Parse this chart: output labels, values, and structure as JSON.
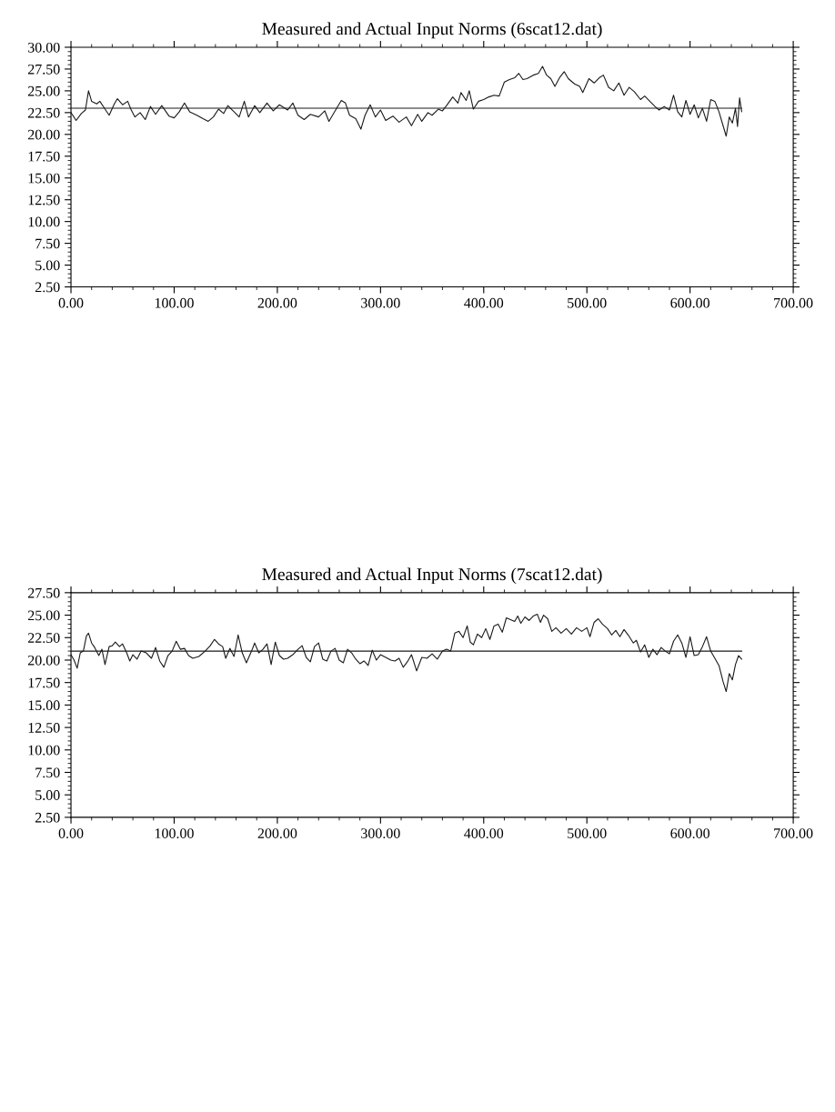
{
  "chart_data": [
    {
      "type": "line",
      "title": "Measured and Actual Input Norms (6scat12.dat)",
      "xlim": [
        0,
        700
      ],
      "ylim": [
        2.5,
        30
      ],
      "xticks": [
        {
          "value": 0,
          "label": "0.00"
        },
        {
          "value": 100,
          "label": "100.00"
        },
        {
          "value": 200,
          "label": "200.00"
        },
        {
          "value": 300,
          "label": "300.00"
        },
        {
          "value": 400,
          "label": "400.00"
        },
        {
          "value": 500,
          "label": "500.00"
        },
        {
          "value": 600,
          "label": "600.00"
        },
        {
          "value": 700,
          "label": "700.00"
        }
      ],
      "yticks": [
        {
          "value": 2.5,
          "label": "2.50"
        },
        {
          "value": 5,
          "label": "5.00"
        },
        {
          "value": 7.5,
          "label": "7.50"
        },
        {
          "value": 10,
          "label": "10.00"
        },
        {
          "value": 12.5,
          "label": "12.50"
        },
        {
          "value": 15,
          "label": "15.00"
        },
        {
          "value": 17.5,
          "label": "17.50"
        },
        {
          "value": 20,
          "label": "20.00"
        },
        {
          "value": 22.5,
          "label": "22.50"
        },
        {
          "value": 25,
          "label": "25.00"
        },
        {
          "value": 27.5,
          "label": "27.50"
        },
        {
          "value": 30,
          "label": "30.00"
        }
      ],
      "series": [
        {
          "color": "#1a1a1a",
          "x": [
            0,
            5,
            10,
            14,
            17,
            20,
            25,
            28,
            33,
            37,
            42,
            45,
            50,
            55,
            58,
            62,
            67,
            72,
            77,
            82,
            88,
            95,
            100,
            105,
            110,
            115,
            122,
            128,
            133,
            138,
            143,
            148,
            152,
            158,
            163,
            168,
            172,
            178,
            183,
            190,
            196,
            202,
            210,
            215,
            220,
            226,
            232,
            240,
            246,
            250,
            257,
            262,
            266,
            270,
            276,
            281,
            285,
            290,
            295,
            300,
            305,
            312,
            318,
            325,
            330,
            336,
            340,
            346,
            350,
            356,
            360,
            364,
            370,
            375,
            378,
            383,
            386,
            390,
            395,
            400,
            405,
            410,
            415,
            420,
            425,
            430,
            434,
            438,
            442,
            448,
            453,
            457,
            461,
            465,
            469,
            474,
            478,
            482,
            488,
            493,
            496,
            502,
            507,
            512,
            516,
            521,
            526,
            531,
            536,
            541,
            546,
            552,
            556,
            561,
            566,
            570,
            575,
            580,
            584,
            588,
            592,
            596,
            600,
            604,
            608,
            612,
            616,
            620,
            624,
            628,
            632,
            635,
            638,
            641,
            644,
            646,
            648,
            650
          ],
          "values": [
            22.5,
            21.6,
            22.4,
            22.8,
            25.0,
            23.8,
            23.5,
            23.8,
            22.9,
            22.2,
            23.5,
            24.1,
            23.4,
            23.8,
            22.9,
            22.0,
            22.5,
            21.7,
            23.2,
            22.3,
            23.3,
            22.1,
            21.9,
            22.6,
            23.6,
            22.6,
            22.2,
            21.8,
            21.5,
            22.0,
            22.9,
            22.4,
            23.3,
            22.6,
            22.0,
            23.8,
            22.0,
            23.3,
            22.5,
            23.6,
            22.7,
            23.4,
            22.8,
            23.6,
            22.2,
            21.7,
            22.3,
            22.0,
            22.7,
            21.5,
            22.9,
            23.9,
            23.6,
            22.2,
            21.8,
            20.6,
            22.2,
            23.4,
            22.0,
            22.8,
            21.6,
            22.1,
            21.4,
            22.0,
            21.0,
            22.3,
            21.5,
            22.5,
            22.2,
            22.9,
            22.7,
            23.3,
            24.3,
            23.6,
            24.8,
            23.9,
            25.0,
            22.9,
            23.8,
            24.0,
            24.3,
            24.5,
            24.4,
            26.0,
            26.3,
            26.5,
            27.0,
            26.3,
            26.4,
            26.8,
            27.0,
            27.8,
            26.8,
            26.4,
            25.5,
            26.6,
            27.2,
            26.4,
            25.8,
            25.5,
            24.8,
            26.4,
            25.9,
            26.5,
            26.8,
            25.4,
            25.0,
            25.9,
            24.5,
            25.4,
            24.9,
            24.0,
            24.4,
            23.8,
            23.2,
            22.8,
            23.2,
            22.8,
            24.5,
            22.6,
            22.0,
            23.9,
            22.3,
            23.4,
            21.9,
            23.0,
            21.5,
            24.0,
            23.8,
            22.6,
            21.0,
            19.8,
            22.0,
            21.3,
            23.0,
            20.9,
            24.2,
            22.6
          ]
        },
        {
          "color": "#1a1a1a",
          "x": [
            0,
            650
          ],
          "values": [
            23.0,
            23.0
          ]
        }
      ]
    },
    {
      "type": "line",
      "title": "Measured and Actual Input Norms (7scat12.dat)",
      "xlim": [
        0,
        700
      ],
      "ylim": [
        2.5,
        27.5
      ],
      "xticks": [
        {
          "value": 0,
          "label": "0.00"
        },
        {
          "value": 100,
          "label": "100.00"
        },
        {
          "value": 200,
          "label": "200.00"
        },
        {
          "value": 300,
          "label": "300.00"
        },
        {
          "value": 400,
          "label": "400.00"
        },
        {
          "value": 500,
          "label": "500.00"
        },
        {
          "value": 600,
          "label": "600.00"
        },
        {
          "value": 700,
          "label": "700.00"
        }
      ],
      "yticks": [
        {
          "value": 2.5,
          "label": "2.50"
        },
        {
          "value": 5,
          "label": "5.00"
        },
        {
          "value": 7.5,
          "label": "7.50"
        },
        {
          "value": 10,
          "label": "10.00"
        },
        {
          "value": 12.5,
          "label": "12.50"
        },
        {
          "value": 15,
          "label": "15.00"
        },
        {
          "value": 17.5,
          "label": "17.50"
        },
        {
          "value": 20,
          "label": "20.00"
        },
        {
          "value": 22.5,
          "label": "22.50"
        },
        {
          "value": 25,
          "label": "25.00"
        },
        {
          "value": 27.5,
          "label": "27.50"
        }
      ],
      "series": [
        {
          "color": "#1a1a1a",
          "x": [
            0,
            3,
            6,
            9,
            12,
            15,
            17,
            20,
            23,
            27,
            30,
            33,
            37,
            40,
            43,
            47,
            50,
            54,
            57,
            60,
            64,
            68,
            73,
            78,
            82,
            86,
            90,
            94,
            98,
            102,
            106,
            110,
            114,
            118,
            124,
            130,
            135,
            139,
            143,
            147,
            150,
            154,
            158,
            162,
            166,
            170,
            175,
            178,
            182,
            186,
            190,
            194,
            198,
            202,
            206,
            210,
            215,
            220,
            224,
            228,
            232,
            236,
            240,
            244,
            248,
            252,
            256,
            260,
            264,
            268,
            272,
            276,
            280,
            284,
            288,
            292,
            296,
            300,
            305,
            310,
            314,
            318,
            322,
            326,
            330,
            335,
            340,
            345,
            350,
            355,
            360,
            364,
            368,
            372,
            376,
            380,
            384,
            387,
            390,
            394,
            398,
            402,
            406,
            410,
            414,
            418,
            422,
            426,
            430,
            433,
            436,
            440,
            444,
            448,
            452,
            455,
            458,
            462,
            466,
            470,
            475,
            480,
            485,
            490,
            495,
            500,
            503,
            507,
            511,
            515,
            520,
            524,
            528,
            532,
            536,
            540,
            545,
            548,
            552,
            556,
            560,
            564,
            568,
            572,
            576,
            580,
            584,
            588,
            592,
            596,
            600,
            604,
            608,
            612,
            616,
            620,
            624,
            628,
            632,
            635,
            638,
            641,
            644,
            647,
            650
          ],
          "values": [
            20.6,
            20.0,
            19.1,
            20.8,
            21.0,
            22.7,
            23.0,
            21.9,
            21.4,
            20.5,
            21.2,
            19.5,
            21.5,
            21.6,
            22.0,
            21.5,
            21.8,
            20.8,
            19.9,
            20.6,
            20.1,
            21.0,
            20.8,
            20.2,
            21.4,
            19.9,
            19.2,
            20.5,
            21.0,
            22.1,
            21.2,
            21.3,
            20.5,
            20.2,
            20.4,
            21.0,
            21.6,
            22.3,
            21.8,
            21.5,
            20.2,
            21.3,
            20.4,
            22.8,
            20.8,
            19.7,
            21.0,
            21.9,
            20.8,
            21.2,
            21.8,
            19.5,
            22.0,
            20.5,
            20.1,
            20.2,
            20.6,
            21.2,
            21.6,
            20.3,
            19.8,
            21.5,
            21.9,
            20.1,
            19.9,
            21.0,
            21.3,
            20.0,
            19.7,
            21.2,
            20.8,
            20.1,
            19.6,
            19.9,
            19.4,
            21.1,
            20.0,
            20.6,
            20.3,
            20.0,
            19.9,
            20.2,
            19.2,
            19.8,
            20.6,
            18.8,
            20.3,
            20.2,
            20.7,
            20.1,
            21.0,
            21.2,
            21.0,
            23.0,
            23.2,
            22.5,
            23.8,
            22.0,
            21.7,
            22.9,
            22.5,
            23.5,
            22.3,
            23.8,
            24.0,
            23.1,
            24.7,
            24.5,
            24.3,
            24.9,
            24.1,
            24.8,
            24.4,
            24.9,
            25.1,
            24.2,
            25.0,
            24.6,
            23.2,
            23.6,
            23.0,
            23.5,
            22.9,
            23.6,
            23.2,
            23.6,
            22.6,
            24.2,
            24.6,
            24.0,
            23.5,
            22.8,
            23.3,
            22.6,
            23.4,
            22.8,
            21.9,
            22.2,
            20.9,
            21.7,
            20.3,
            21.2,
            20.6,
            21.4,
            21.0,
            20.7,
            22.1,
            22.8,
            21.9,
            20.3,
            22.6,
            20.5,
            20.6,
            21.5,
            22.6,
            21.0,
            20.2,
            19.4,
            17.6,
            16.5,
            18.5,
            17.8,
            19.5,
            20.5,
            20.1
          ]
        },
        {
          "color": "#1a1a1a",
          "x": [
            0,
            650
          ],
          "values": [
            21.0,
            21.0
          ]
        }
      ]
    }
  ]
}
